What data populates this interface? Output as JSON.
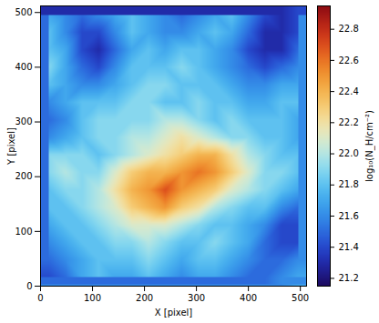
{
  "chart_data": {
    "type": "heatmap",
    "xlabel": "X [pixel]",
    "ylabel": "Y [pixel]",
    "xlim": [
      0,
      512
    ],
    "ylim": [
      0,
      512
    ],
    "xticks": [
      0,
      100,
      200,
      300,
      400,
      500
    ],
    "yticks": [
      0,
      100,
      200,
      300,
      400,
      500
    ],
    "x": [
      16,
      48,
      80,
      112,
      144,
      176,
      208,
      240,
      272,
      304,
      336,
      368,
      400,
      432,
      464,
      496
    ],
    "y": [
      496,
      464,
      432,
      400,
      368,
      336,
      304,
      272,
      240,
      208,
      176,
      144,
      112,
      80,
      48,
      16
    ],
    "values": [
      [
        21.7,
        21.6,
        21.5,
        21.6,
        21.7,
        21.8,
        21.7,
        21.6,
        21.5,
        21.6,
        21.7,
        21.8,
        21.6,
        21.4,
        21.3,
        21.4
      ],
      [
        21.8,
        21.6,
        21.4,
        21.4,
        21.6,
        21.8,
        21.7,
        21.6,
        21.6,
        21.7,
        21.8,
        21.7,
        21.5,
        21.3,
        21.3,
        21.4
      ],
      [
        21.8,
        21.7,
        21.4,
        21.3,
        21.5,
        21.7,
        21.8,
        21.7,
        21.8,
        21.8,
        21.7,
        21.6,
        21.4,
        21.3,
        21.3,
        21.5
      ],
      [
        21.9,
        21.7,
        21.5,
        21.4,
        21.6,
        21.8,
        21.8,
        21.8,
        21.9,
        21.8,
        21.7,
        21.6,
        21.5,
        21.4,
        21.5,
        21.6
      ],
      [
        21.8,
        21.7,
        21.6,
        21.6,
        21.7,
        21.8,
        21.9,
        21.9,
        21.8,
        21.8,
        21.8,
        21.7,
        21.6,
        21.6,
        21.7,
        21.7
      ],
      [
        21.6,
        21.7,
        21.8,
        21.8,
        21.8,
        21.9,
        21.9,
        21.8,
        21.8,
        21.9,
        21.8,
        21.8,
        21.7,
        21.7,
        21.8,
        21.8
      ],
      [
        21.5,
        21.6,
        21.8,
        21.9,
        21.9,
        21.9,
        21.9,
        22.0,
        22.0,
        21.9,
        21.8,
        21.9,
        21.8,
        21.8,
        21.8,
        21.7
      ],
      [
        21.6,
        21.7,
        21.8,
        21.9,
        21.9,
        22.0,
        22.0,
        22.1,
        22.2,
        22.1,
        22.0,
        21.9,
        21.9,
        21.8,
        21.8,
        21.7
      ],
      [
        21.9,
        21.9,
        21.9,
        21.8,
        21.9,
        22.0,
        22.1,
        22.2,
        22.3,
        22.4,
        22.4,
        22.2,
        22.0,
        21.9,
        21.8,
        21.8
      ],
      [
        21.9,
        22.0,
        21.9,
        21.9,
        22.1,
        22.3,
        22.4,
        22.4,
        22.5,
        22.6,
        22.5,
        22.3,
        22.1,
        21.9,
        21.9,
        21.8
      ],
      [
        21.8,
        21.9,
        21.9,
        22.0,
        22.2,
        22.4,
        22.5,
        22.7,
        22.5,
        22.4,
        22.3,
        22.1,
        22.0,
        21.9,
        21.8,
        21.7
      ],
      [
        21.8,
        21.8,
        21.9,
        22.0,
        22.1,
        22.3,
        22.4,
        22.5,
        22.3,
        22.2,
        22.0,
        21.9,
        21.8,
        21.8,
        21.6,
        21.5
      ],
      [
        21.7,
        21.8,
        21.8,
        21.9,
        22.0,
        22.1,
        22.1,
        22.1,
        22.0,
        21.9,
        21.8,
        21.8,
        21.7,
        21.6,
        21.4,
        21.4
      ],
      [
        21.6,
        21.7,
        21.8,
        21.8,
        21.9,
        21.9,
        22.0,
        21.9,
        21.8,
        21.8,
        21.9,
        21.8,
        21.7,
        21.5,
        21.4,
        21.4
      ],
      [
        21.5,
        21.6,
        21.7,
        21.8,
        21.8,
        21.8,
        21.9,
        21.8,
        21.7,
        21.8,
        21.8,
        21.7,
        21.6,
        21.5,
        21.5,
        21.6
      ],
      [
        21.4,
        21.5,
        21.7,
        21.8,
        21.7,
        21.7,
        21.8,
        21.7,
        21.6,
        21.7,
        21.7,
        21.6,
        21.5,
        21.5,
        21.6,
        21.7
      ]
    ],
    "colorbar": {
      "label": "log₁₀(N_H/cm⁻²)",
      "lim": [
        21.15,
        22.95
      ],
      "ticks": [
        21.2,
        21.4,
        21.6,
        21.8,
        {
          "value": 22,
          "label": "22.0"
        },
        22.2,
        22.4,
        22.6,
        22.8
      ]
    }
  }
}
